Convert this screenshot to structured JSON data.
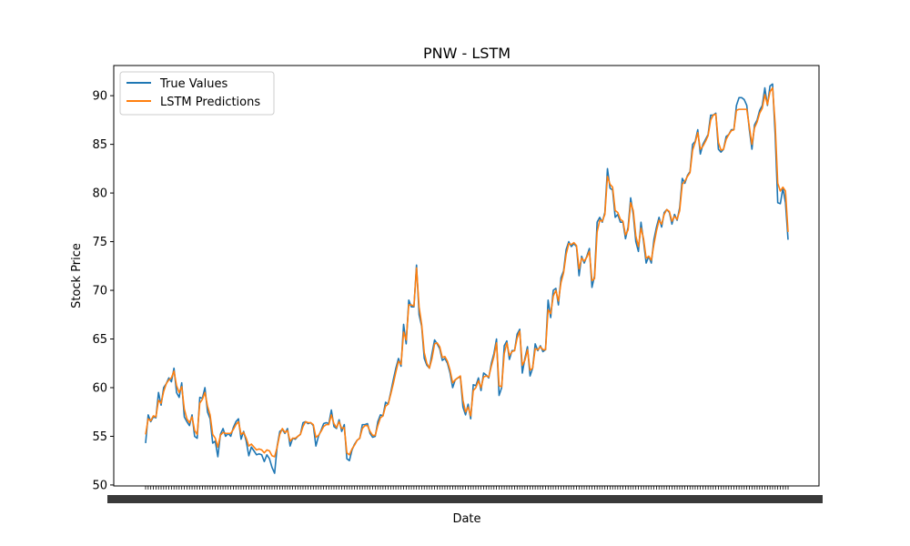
{
  "chart_data": {
    "type": "line",
    "title": "PNW - LSTM",
    "xlabel": "Date",
    "ylabel": "Stock Price",
    "ylim": [
      49.9,
      93.1
    ],
    "yticks": [
      50,
      55,
      60,
      65,
      70,
      75,
      80,
      85,
      90
    ],
    "grid": false,
    "legend_position": "top-left",
    "series": [
      {
        "name": "True Values",
        "color": "#1f77b4",
        "values": [
          54.3,
          57.2,
          56.5,
          57.0,
          56.9,
          59.5,
          58.2,
          60.0,
          60.4,
          61.0,
          60.6,
          62.0,
          59.5,
          59.0,
          60.5,
          57.0,
          56.5,
          56.1,
          57.2,
          55.0,
          54.8,
          59.0,
          58.9,
          60.0,
          57.5,
          56.8,
          54.3,
          54.5,
          52.9,
          55.2,
          55.8,
          55.0,
          55.3,
          55.0,
          55.9,
          56.5,
          56.8,
          54.7,
          55.5,
          54.5,
          53.0,
          53.9,
          53.5,
          53.1,
          53.2,
          53.1,
          52.4,
          53.1,
          52.7,
          51.8,
          51.2,
          54.0,
          55.5,
          55.7,
          55.3,
          55.8,
          54.0,
          54.8,
          54.7,
          55.0,
          55.2,
          56.4,
          56.5,
          56.3,
          56.4,
          56.1,
          54.0,
          55.0,
          55.6,
          56.3,
          56.4,
          56.3,
          57.7,
          56.0,
          55.8,
          56.7,
          55.5,
          56.2,
          52.7,
          52.5,
          53.6,
          54.2,
          54.6,
          54.8,
          56.2,
          56.2,
          56.3,
          55.3,
          54.9,
          55.0,
          56.5,
          57.2,
          57.1,
          58.5,
          58.3,
          59.5,
          60.8,
          62.0,
          63.0,
          62.2,
          66.5,
          64.5,
          69.0,
          68.3,
          68.3,
          72.6,
          67.5,
          66.3,
          63.0,
          62.3,
          62.0,
          63.5,
          64.9,
          64.5,
          64.0,
          62.8,
          63.0,
          62.5,
          61.5,
          60.0,
          60.8,
          61.0,
          61.1,
          58.0,
          57.2,
          58.3,
          56.8,
          60.3,
          60.2,
          61.0,
          59.7,
          61.5,
          61.3,
          61.0,
          62.5,
          63.5,
          65.0,
          59.2,
          60.0,
          64.3,
          64.8,
          62.9,
          63.8,
          63.8,
          65.5,
          66.0,
          61.5,
          63.0,
          64.2,
          61.2,
          62.0,
          64.5,
          63.8,
          64.3,
          63.7,
          63.9,
          69.0,
          67.2,
          70.0,
          70.2,
          68.5,
          71.3,
          72.0,
          74.2,
          75.0,
          74.5,
          74.8,
          74.5,
          71.5,
          73.5,
          72.8,
          73.5,
          74.3,
          70.3,
          71.5,
          77.0,
          77.5,
          77.0,
          78.0,
          82.5,
          80.5,
          80.3,
          77.5,
          77.8,
          77.0,
          77.0,
          75.3,
          76.5,
          79.5,
          77.8,
          75.0,
          74.0,
          77.0,
          75.0,
          72.8,
          73.5,
          72.8,
          75.2,
          76.5,
          77.5,
          76.5,
          78.0,
          78.3,
          78.0,
          76.8,
          77.8,
          77.2,
          78.5,
          81.5,
          81.0,
          81.8,
          82.2,
          85.0,
          85.3,
          86.5,
          84.0,
          85.0,
          85.5,
          86.0,
          88.0,
          88.0,
          88.2,
          84.5,
          84.2,
          84.5,
          85.8,
          86.0,
          86.5,
          86.5,
          89.0,
          89.8,
          89.8,
          89.6,
          89.0,
          86.5,
          84.5,
          87.0,
          87.5,
          88.5,
          89.0,
          90.8,
          89.0,
          91.0,
          91.2,
          86.0,
          79.0,
          78.9,
          80.5,
          79.0,
          75.2
        ]
      },
      {
        "name": "LSTM Predictions",
        "color": "#ff7f0e",
        "values": [
          55.2,
          56.8,
          56.6,
          57.1,
          57.0,
          58.7,
          58.4,
          59.6,
          60.4,
          60.8,
          61.0,
          61.7,
          60.2,
          59.5,
          60.1,
          57.8,
          56.8,
          56.4,
          57.0,
          55.6,
          55.2,
          58.4,
          58.8,
          59.5,
          58.1,
          57.2,
          55.2,
          54.8,
          53.9,
          55.1,
          55.4,
          55.3,
          55.3,
          55.3,
          55.7,
          56.2,
          56.5,
          55.2,
          55.4,
          54.8,
          54.0,
          54.2,
          53.9,
          53.6,
          53.7,
          53.6,
          53.3,
          53.6,
          53.5,
          53.0,
          52.9,
          53.9,
          55.2,
          55.8,
          55.4,
          55.6,
          54.5,
          54.8,
          54.8,
          55.0,
          55.2,
          56.0,
          56.5,
          56.4,
          56.4,
          56.2,
          54.9,
          55.1,
          55.5,
          56.0,
          56.2,
          56.2,
          57.2,
          56.3,
          55.9,
          56.5,
          55.8,
          55.9,
          53.3,
          53.1,
          53.7,
          54.1,
          54.6,
          54.8,
          55.8,
          56.1,
          56.1,
          55.5,
          55.1,
          55.1,
          56.1,
          56.9,
          57.1,
          58.1,
          58.3,
          59.3,
          60.4,
          61.6,
          62.7,
          62.4,
          65.7,
          64.9,
          68.5,
          68.5,
          68.4,
          72.3,
          68.3,
          66.5,
          63.6,
          62.5,
          62.0,
          63.0,
          64.5,
          64.6,
          64.2,
          63.1,
          63.2,
          62.7,
          61.8,
          60.5,
          60.8,
          61.0,
          61.2,
          58.7,
          57.5,
          58.0,
          57.1,
          59.7,
          60.0,
          60.7,
          60.0,
          61.1,
          61.2,
          61.1,
          62.2,
          63.2,
          64.6,
          60.2,
          60.1,
          63.5,
          64.6,
          63.3,
          63.7,
          63.8,
          65.1,
          65.8,
          62.3,
          62.8,
          63.9,
          61.8,
          62.0,
          64.0,
          63.9,
          64.2,
          63.9,
          63.9,
          68.0,
          67.6,
          69.4,
          70.0,
          68.9,
          70.8,
          71.8,
          73.7,
          74.8,
          74.7,
          74.9,
          74.6,
          72.2,
          73.3,
          73.0,
          73.4,
          74.0,
          71.0,
          71.2,
          76.0,
          77.2,
          77.1,
          77.8,
          81.7,
          80.9,
          80.6,
          78.2,
          78.0,
          77.3,
          77.1,
          75.7,
          76.2,
          79.0,
          78.2,
          75.6,
          74.5,
          76.4,
          75.3,
          73.3,
          73.5,
          73.1,
          74.7,
          76.1,
          77.2,
          76.8,
          77.8,
          78.3,
          78.1,
          77.1,
          77.6,
          77.3,
          78.2,
          80.9,
          81.2,
          81.7,
          82.1,
          84.4,
          85.2,
          86.2,
          84.5,
          84.8,
          85.3,
          85.9,
          87.5,
          88.0,
          88.1,
          85.2,
          84.4,
          84.5,
          85.5,
          86.0,
          86.4,
          86.5,
          88.5,
          88.6,
          88.6,
          88.6,
          88.6,
          86.8,
          85.0,
          86.7,
          87.3,
          88.2,
          88.7,
          90.1,
          89.1,
          90.4,
          90.8,
          87.1,
          81.0,
          80.2,
          80.6,
          80.2,
          76.0
        ]
      }
    ]
  }
}
